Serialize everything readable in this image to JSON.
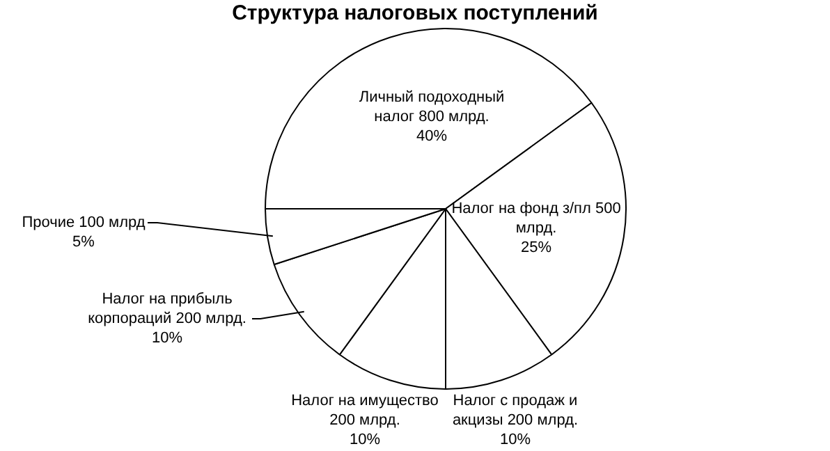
{
  "chart_data": {
    "type": "pie",
    "title": "Структура налоговых поступлений",
    "categories": [
      "Личный подоходный налог",
      "Налог на фонд з/пл",
      "Налог с продаж и акцизы",
      "Налог на имущество",
      "Налог на прибыль корпораций",
      "Прочие"
    ],
    "values": [
      800,
      500,
      200,
      200,
      200,
      100
    ],
    "colors": [
      "#ffffff",
      "#ffffff",
      "#ffffff",
      "#ffffff",
      "#ffffff",
      "#ffffff"
    ],
    "value_labels": [
      "800 млрд.\n40%",
      "500 млрд.\n25%",
      "200 млрд.\n10%",
      "200 млрд.\n10%",
      "200 млрд.\n10%",
      "100 млрд\n5%"
    ],
    "legend": false
  }
}
